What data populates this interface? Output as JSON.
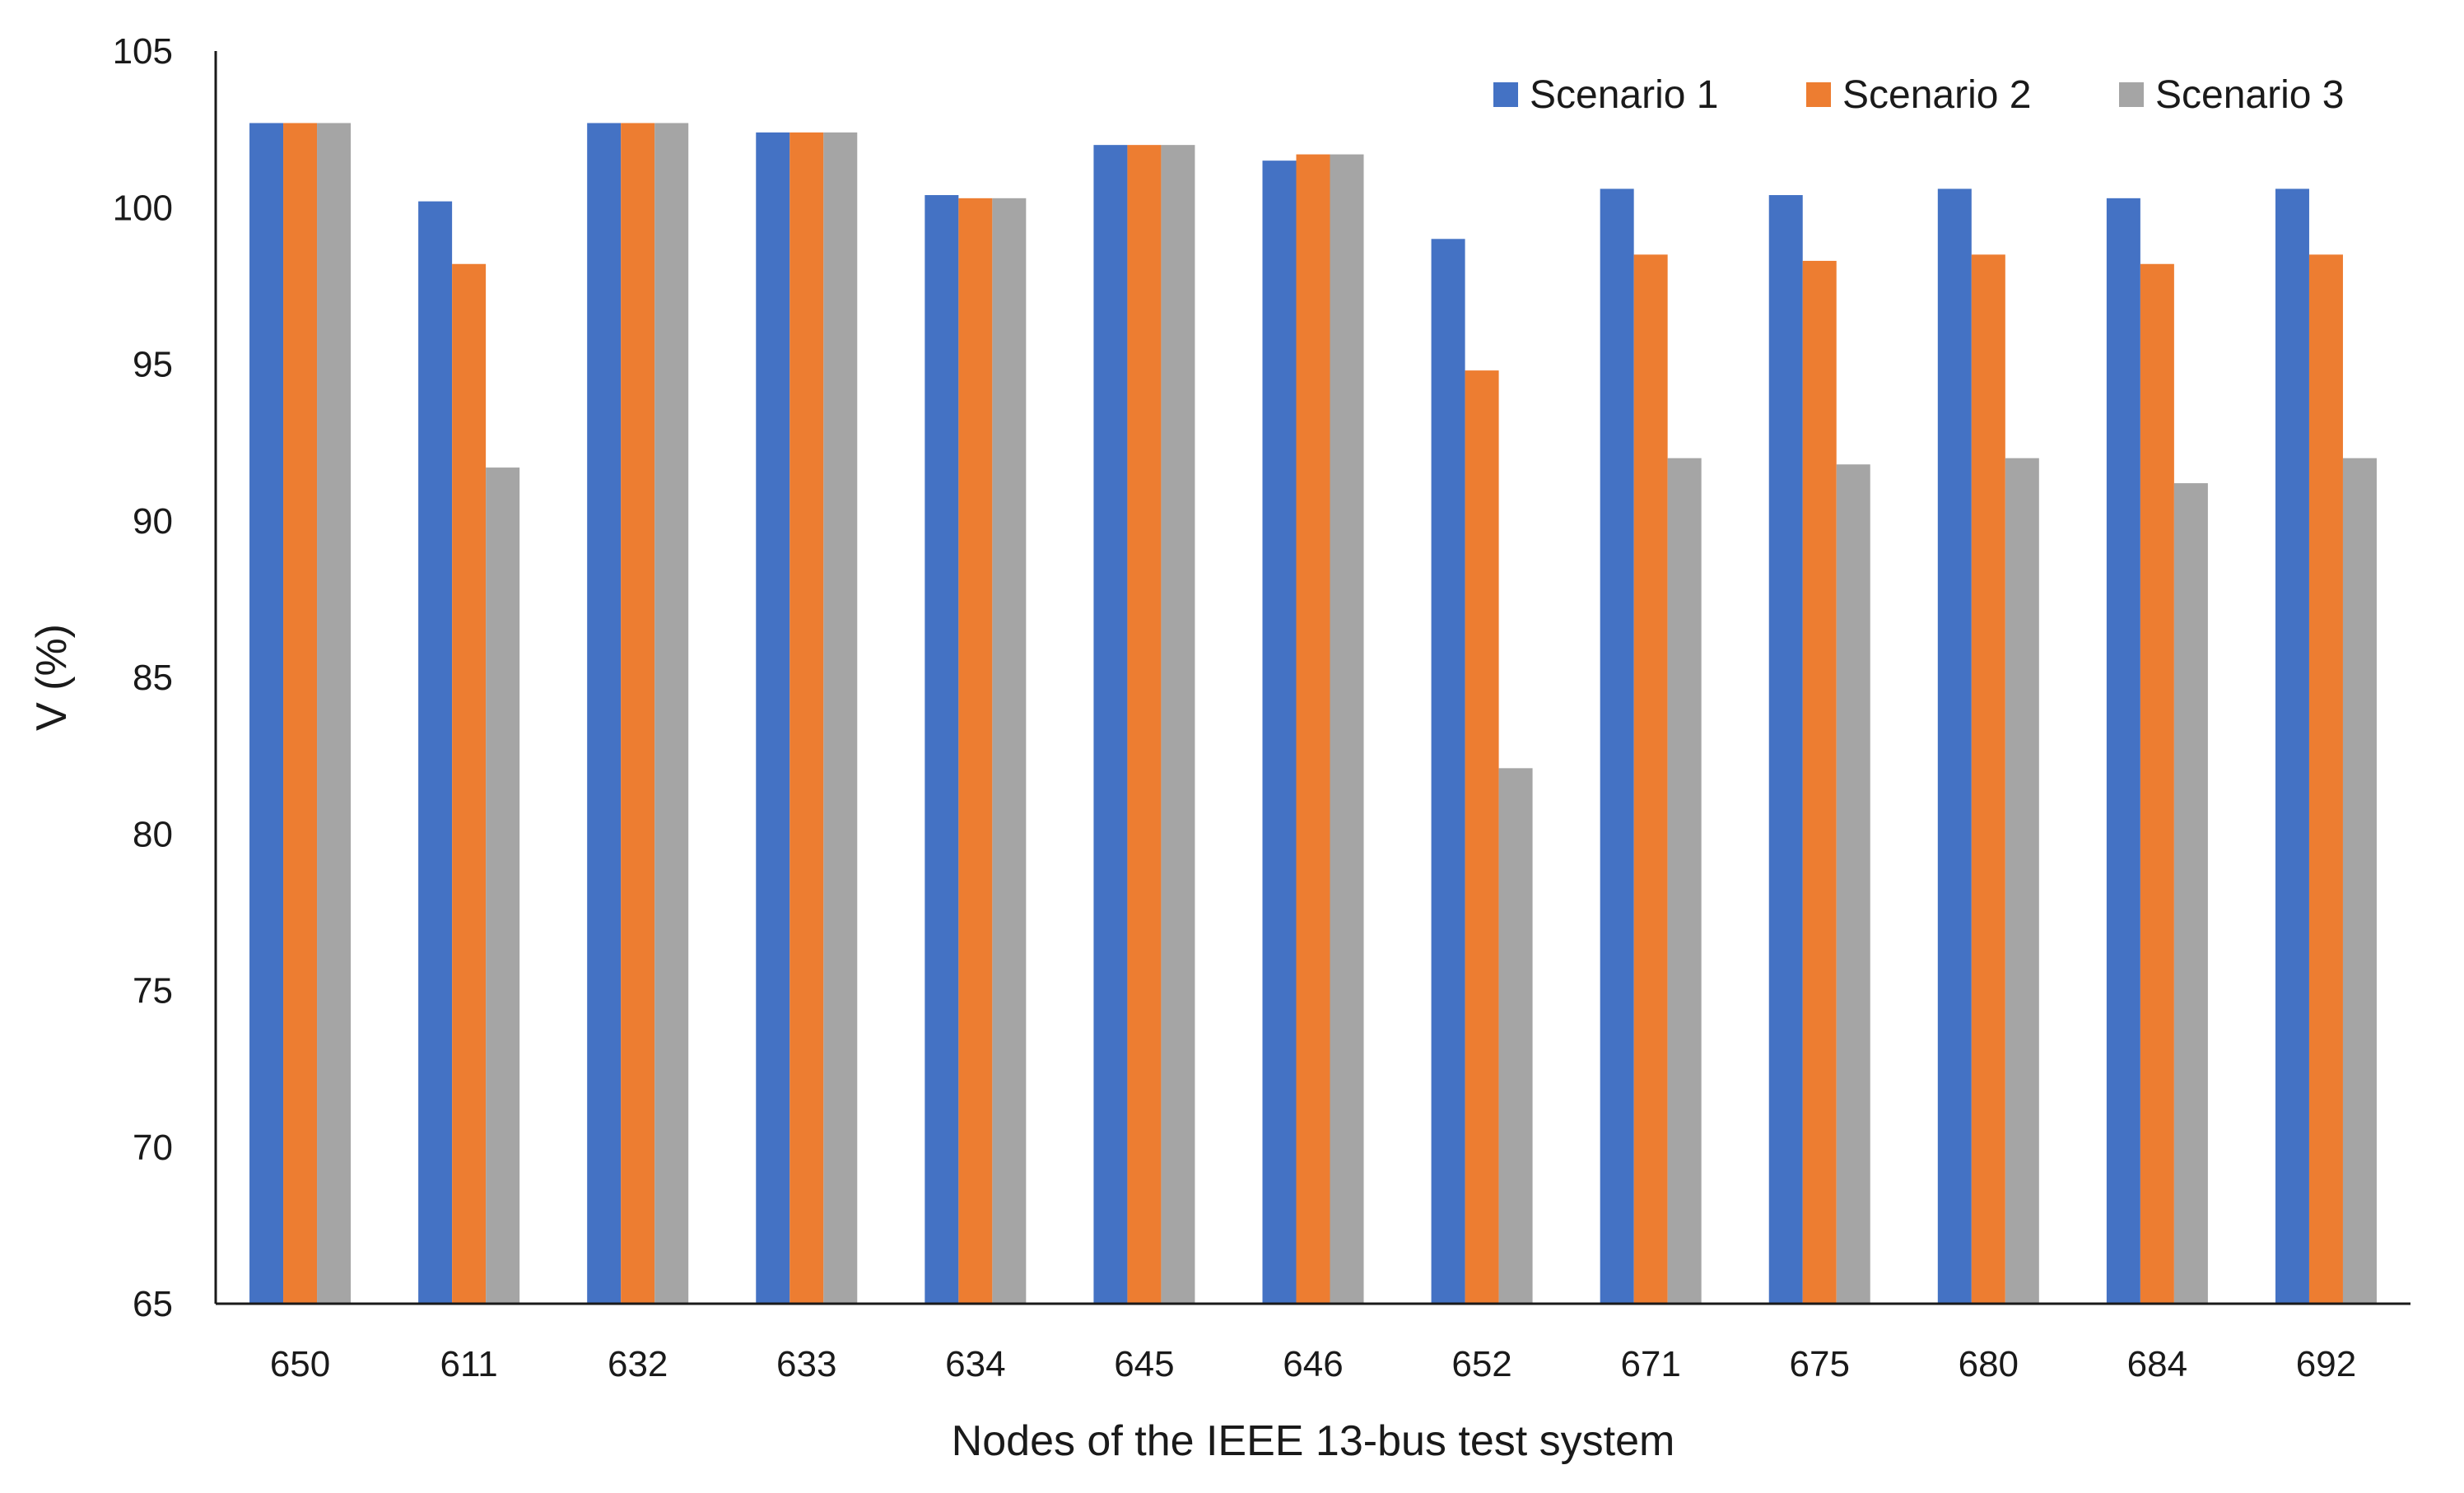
{
  "chart_data": {
    "type": "bar",
    "title": "",
    "xlabel": "Nodes of the IEEE 13-bus test system",
    "ylabel": "V (%)",
    "ylim": [
      65,
      105
    ],
    "yticks": [
      65,
      70,
      75,
      80,
      85,
      90,
      95,
      100,
      105
    ],
    "grid": false,
    "legend_position": "top-right",
    "categories": [
      "650",
      "611",
      "632",
      "633",
      "634",
      "645",
      "646",
      "652",
      "671",
      "675",
      "680",
      "684",
      "692"
    ],
    "series": [
      {
        "name": "Scenario 1",
        "color": "#4472C4",
        "values": [
          102.7,
          100.2,
          102.7,
          102.4,
          100.4,
          102.0,
          101.5,
          99.0,
          100.6,
          100.4,
          100.6,
          100.3,
          100.6
        ]
      },
      {
        "name": "Scenario 2",
        "color": "#ED7D31",
        "values": [
          102.7,
          98.2,
          102.7,
          102.4,
          100.3,
          102.0,
          101.7,
          94.8,
          98.5,
          98.3,
          98.5,
          98.2,
          98.5
        ]
      },
      {
        "name": "Scenario 3",
        "color": "#A5A5A5",
        "values": [
          102.7,
          91.7,
          102.7,
          102.4,
          100.3,
          102.0,
          101.7,
          82.1,
          92.0,
          91.8,
          92.0,
          91.2,
          92.0
        ]
      }
    ]
  }
}
